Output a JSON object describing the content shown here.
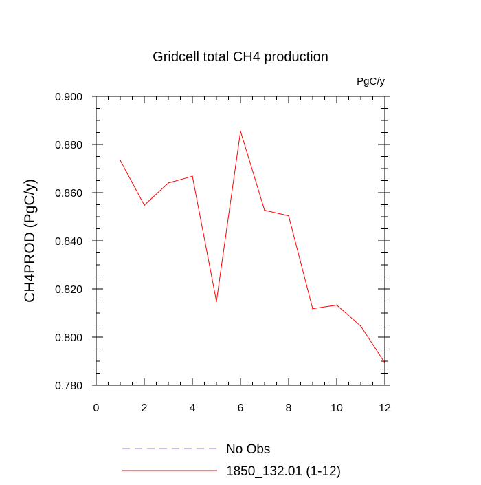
{
  "chart_data": {
    "type": "line",
    "title": "Gridcell total CH4 production",
    "units": "PgC/y",
    "xlabel": "",
    "ylabel": "CH4PROD  (PgC/y)",
    "xlim": [
      0,
      12
    ],
    "ylim": [
      0.78,
      0.9
    ],
    "xticks": [
      0,
      2,
      4,
      6,
      8,
      10,
      12
    ],
    "xtick_labels": [
      "0",
      "2",
      "4",
      "6",
      "8",
      "10",
      "12"
    ],
    "yticks": [
      0.78,
      0.8,
      0.82,
      0.84,
      0.86,
      0.88,
      0.9
    ],
    "ytick_labels": [
      "0.780",
      "0.800",
      "0.820",
      "0.840",
      "0.860",
      "0.880",
      "0.900"
    ],
    "grid": false,
    "legend_position": "bottom",
    "series": [
      {
        "name": "No Obs",
        "color": "#8080ff",
        "dash": "dashed",
        "x": [],
        "y": []
      },
      {
        "name": "1850_132.01 (1-12)",
        "color": "#ff0000",
        "dash": "solid",
        "x": [
          1,
          2,
          3,
          4,
          5,
          6,
          7,
          8,
          9,
          10,
          11,
          12
        ],
        "y": [
          0.8734,
          0.8548,
          0.864,
          0.8668,
          0.8148,
          0.8855,
          0.8527,
          0.8504,
          0.8118,
          0.8133,
          0.8046,
          0.7893
        ]
      }
    ]
  }
}
